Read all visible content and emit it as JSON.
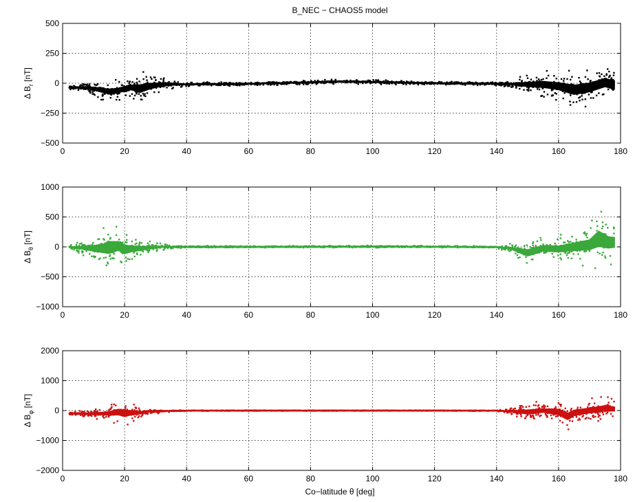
{
  "figure": {
    "title": "B_NEC − CHAOS5 model",
    "xlabel": "Co−latitude θ [deg]"
  },
  "chart_data": [
    {
      "type": "scatter",
      "ylabel": "Δ B_r [nT]",
      "ylabel_main": "Δ B",
      "ylabel_sub": "r",
      "ylabel_unit": "[nT]",
      "color": "#000000",
      "xlim": [
        0,
        180
      ],
      "ylim": [
        -500,
        500
      ],
      "xticks": [
        0,
        20,
        40,
        60,
        80,
        100,
        120,
        140,
        160,
        180
      ],
      "yticks": [
        -500,
        -250,
        0,
        250,
        500
      ],
      "ytick_labels": [
        "−500",
        "−250",
        "0",
        "250",
        "500"
      ],
      "grid": true,
      "envelope": {
        "x": [
          2,
          5,
          10,
          15,
          18,
          22,
          25,
          28,
          32,
          36,
          40,
          60,
          80,
          90,
          100,
          120,
          140,
          145,
          150,
          155,
          160,
          165,
          170,
          175,
          178
        ],
        "upper": [
          -10,
          0,
          20,
          30,
          30,
          60,
          100,
          90,
          60,
          30,
          10,
          10,
          25,
          35,
          30,
          15,
          10,
          25,
          80,
          110,
          110,
          120,
          130,
          160,
          150
        ],
        "lower": [
          -60,
          -70,
          -110,
          -170,
          -150,
          -130,
          -190,
          -140,
          -80,
          -50,
          -30,
          -20,
          -10,
          -5,
          -10,
          -15,
          -20,
          -40,
          -100,
          -130,
          -160,
          -230,
          -200,
          -150,
          -180
        ]
      }
    },
    {
      "type": "scatter",
      "ylabel": "Δ B_θ [nT]",
      "ylabel_main": "Δ B",
      "ylabel_sub": "θ",
      "ylabel_unit": "[nT]",
      "color": "#3aa83a",
      "xlim": [
        0,
        180
      ],
      "ylim": [
        -1000,
        1000
      ],
      "xticks": [
        0,
        20,
        40,
        60,
        80,
        100,
        120,
        140,
        160,
        180
      ],
      "yticks": [
        -1000,
        -500,
        0,
        500,
        1000
      ],
      "ytick_labels": [
        "−1000",
        "−500",
        "0",
        "500",
        "1000"
      ],
      "grid": true,
      "envelope": {
        "x": [
          2,
          5,
          10,
          13,
          15,
          18,
          20,
          22,
          25,
          28,
          32,
          36,
          40,
          60,
          80,
          100,
          120,
          140,
          145,
          150,
          155,
          160,
          165,
          170,
          173,
          176,
          178
        ],
        "upper": [
          40,
          80,
          200,
          300,
          430,
          350,
          300,
          200,
          150,
          100,
          60,
          30,
          20,
          15,
          20,
          25,
          20,
          15,
          60,
          150,
          200,
          200,
          300,
          400,
          690,
          500,
          450
        ],
        "lower": [
          -40,
          -100,
          -250,
          -350,
          -450,
          -320,
          -380,
          -270,
          -200,
          -120,
          -60,
          -30,
          -20,
          -15,
          -15,
          -15,
          -15,
          -20,
          -120,
          -350,
          -250,
          -270,
          -300,
          -330,
          -420,
          -350,
          -300
        ]
      }
    },
    {
      "type": "scatter",
      "ylabel": "Δ B_φ [nT]",
      "ylabel_main": "Δ B",
      "ylabel_sub": "φ",
      "ylabel_unit": "[nT]",
      "color": "#cc1010",
      "xlim": [
        0,
        180
      ],
      "ylim": [
        -2000,
        2000
      ],
      "xticks": [
        0,
        20,
        40,
        60,
        80,
        100,
        120,
        140,
        160,
        180
      ],
      "yticks": [
        -2000,
        -1000,
        0,
        1000,
        2000
      ],
      "ytick_labels": [
        "−2000",
        "−1000",
        "0",
        "1000",
        "2000"
      ],
      "grid": true,
      "envelope": {
        "x": [
          2,
          5,
          10,
          15,
          18,
          20,
          22,
          25,
          28,
          32,
          36,
          40,
          60,
          80,
          100,
          120,
          140,
          145,
          150,
          155,
          160,
          163,
          165,
          170,
          175,
          178
        ],
        "upper": [
          -40,
          -20,
          50,
          200,
          400,
          420,
          300,
          150,
          80,
          40,
          20,
          10,
          10,
          10,
          10,
          10,
          10,
          100,
          300,
          300,
          400,
          300,
          350,
          400,
          500,
          400
        ],
        "lower": [
          -160,
          -180,
          -250,
          -400,
          -500,
          -600,
          -450,
          -300,
          -150,
          -80,
          -40,
          -20,
          -15,
          -15,
          -15,
          -15,
          -20,
          -150,
          -400,
          -300,
          -500,
          -700,
          -500,
          -400,
          -350,
          -300
        ]
      }
    }
  ]
}
